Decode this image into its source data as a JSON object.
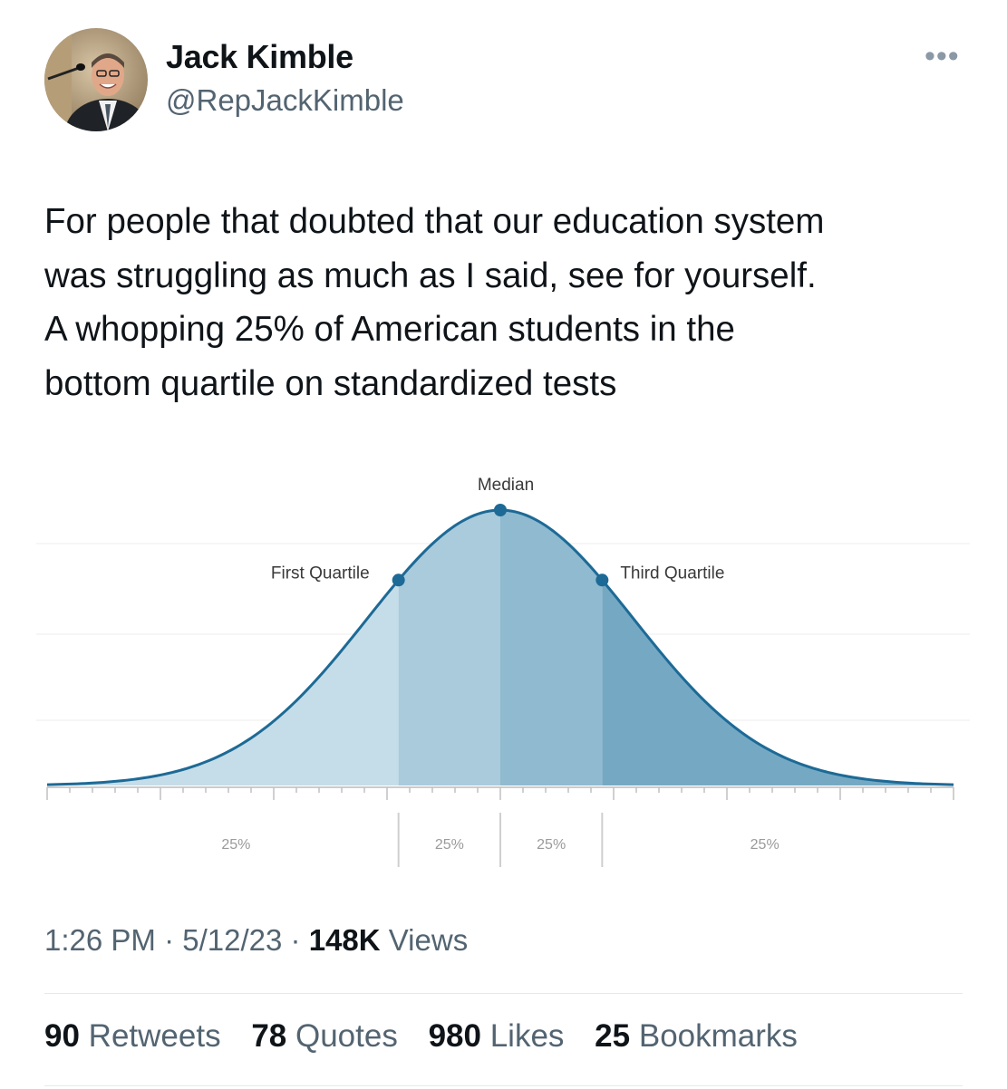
{
  "author": {
    "name": "Jack Kimble",
    "handle": "@RepJackKimble"
  },
  "tweet": {
    "text_lines": [
      "For people that doubted that our education system",
      "was struggling as much as I said, see for yourself.",
      "A whopping 25% of American students in the",
      "bottom quartile on standardized tests"
    ]
  },
  "meta": {
    "time": "1:26 PM",
    "date": "5/12/23",
    "separator": "·",
    "views_count": "148K",
    "views_label": "Views"
  },
  "stats": [
    {
      "count": "90",
      "label": "Retweets"
    },
    {
      "count": "78",
      "label": "Quotes"
    },
    {
      "count": "980",
      "label": "Likes"
    },
    {
      "count": "25",
      "label": "Bookmarks"
    }
  ],
  "colors": {
    "curve": "#1d6a96",
    "segment_1": "#c5dde8",
    "segment_2": "#a9cbdc",
    "segment_3": "#8fbacf",
    "segment_4": "#75a9c3"
  },
  "chart_data": {
    "type": "area",
    "description_title": "",
    "distribution": "normal",
    "x_range": [
      -3,
      3
    ],
    "annotations": [
      {
        "label": "First Quartile",
        "z": -0.674
      },
      {
        "label": "Median",
        "z": 0
      },
      {
        "label": "Third Quartile",
        "z": 0.674
      }
    ],
    "segments": [
      {
        "label": "25%",
        "from": -3,
        "to": -0.674,
        "value": 25
      },
      {
        "label": "25%",
        "from": -0.674,
        "to": 0,
        "value": 25
      },
      {
        "label": "25%",
        "from": 0,
        "to": 0.674,
        "value": 25
      },
      {
        "label": "25%",
        "from": 0.674,
        "to": 3,
        "value": 25
      }
    ]
  }
}
